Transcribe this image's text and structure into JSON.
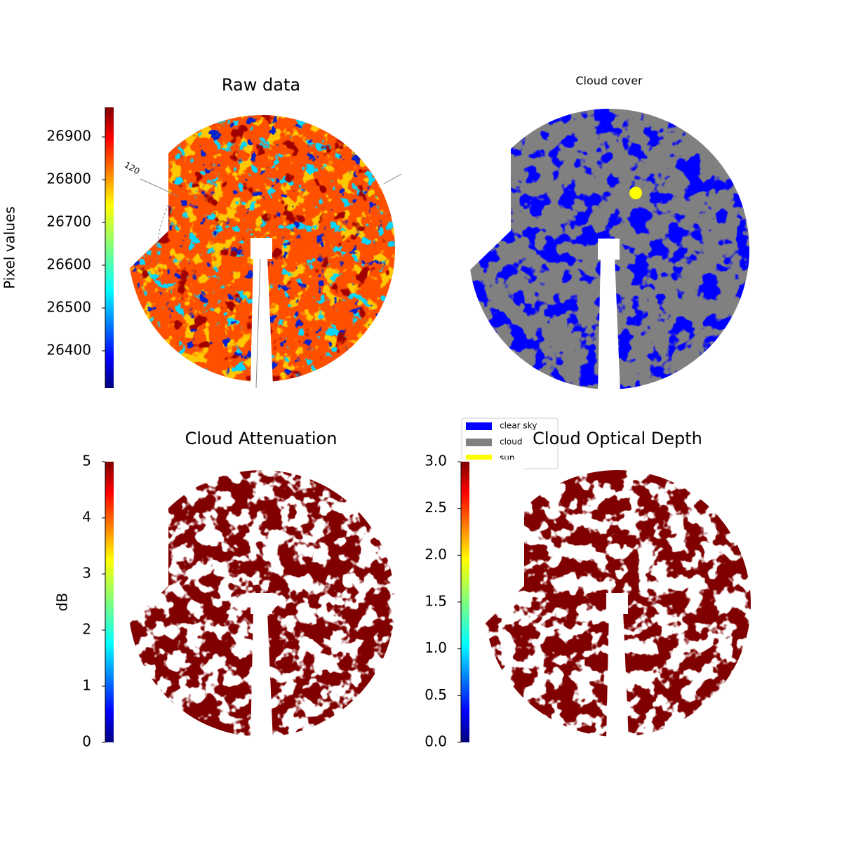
{
  "chart_data": [
    {
      "type": "heatmap",
      "title": "Raw data",
      "ylabel": "Pixel values",
      "ylim": [
        26313,
        26969
      ],
      "yticks": [
        26400,
        26500,
        26600,
        26700,
        26800,
        26900
      ],
      "colormap": "jet",
      "annotation": "120"
    },
    {
      "type": "categorical",
      "title": "Cloud cover",
      "legend": [
        {
          "name": "clear sky",
          "color": "#0000ff"
        },
        {
          "name": "cloud",
          "color": "#808080"
        },
        {
          "name": "sun",
          "color": "#ffff00"
        }
      ]
    },
    {
      "type": "heatmap",
      "title": "Cloud Attenuation",
      "ylabel": "dB",
      "ylim": [
        0,
        5
      ],
      "yticks": [
        0,
        1,
        2,
        3,
        4,
        5
      ],
      "colormap": "jet"
    },
    {
      "type": "heatmap",
      "title": "Cloud Optical Depth",
      "ylim": [
        0,
        3
      ],
      "yticks": [
        {
          "value": 0,
          "label": "0.0"
        },
        {
          "value": 0.5,
          "label": "0.5"
        },
        {
          "value": 1,
          "label": "1.0"
        },
        {
          "value": 1.5,
          "label": "1.5"
        },
        {
          "value": 2,
          "label": "2.0"
        },
        {
          "value": 2.5,
          "label": "2.5"
        },
        {
          "value": 3,
          "label": "3.0"
        }
      ],
      "colormap": "jet"
    }
  ]
}
